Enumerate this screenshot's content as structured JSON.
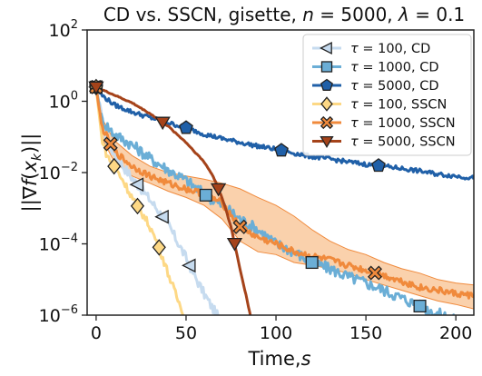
{
  "chart_data": {
    "type": "line",
    "title": "CD vs. SSCN, gisette, n = 5000, λ = 0.1",
    "xlabel": "Time, s",
    "ylabel": "||∇f(x_k)||",
    "xlim": [
      -5,
      210
    ],
    "ylim_log10": [
      -6,
      2
    ],
    "y_scale": "log",
    "x_ticks": [
      0,
      50,
      100,
      150,
      200
    ],
    "y_ticks": [
      {
        "exp": "2",
        "value": 100
      },
      {
        "exp": "0",
        "value": 1
      },
      {
        "exp": "−2",
        "value": 0.01
      },
      {
        "exp": "−4",
        "value": 0.0001
      },
      {
        "exp": "−6",
        "value": 1e-06
      }
    ],
    "legend_position": "top-right",
    "series": [
      {
        "name": "τ = 100, CD",
        "tau": "100",
        "method": "CD",
        "color": "#c6dbef",
        "marker": "triangle-left",
        "x": [
          0,
          5,
          10,
          15,
          20,
          25,
          30,
          35,
          40,
          45,
          50,
          55,
          60,
          65,
          70
        ],
        "y": [
          2.5,
          0.1,
          0.035,
          0.015,
          0.007,
          0.0035,
          0.0017,
          0.0008,
          0.00035,
          0.00012,
          4e-05,
          1.2e-05,
          4e-06,
          1.5e-06,
          6e-07
        ],
        "markers_x": [
          0,
          23,
          37,
          52
        ]
      },
      {
        "name": "τ = 1000, CD",
        "tau": "1000",
        "method": "CD",
        "color": "#6baed6",
        "marker": "square",
        "x": [
          0,
          3,
          10,
          20,
          30,
          40,
          50,
          60,
          70,
          80,
          90,
          100,
          110,
          120,
          130,
          140,
          150,
          160,
          170,
          180,
          190,
          200
        ],
        "y": [
          2.5,
          0.3,
          0.12,
          0.06,
          0.025,
          0.012,
          0.006,
          0.0025,
          0.0012,
          0.0005,
          0.00025,
          0.0001,
          6e-05,
          3e-05,
          2e-05,
          1.2e-05,
          8e-06,
          5e-06,
          3e-06,
          1.8e-06,
          1.1e-06,
          7e-07
        ],
        "markers_x": [
          0,
          61,
          120,
          180
        ]
      },
      {
        "name": "τ = 5000, CD",
        "tau": "5000",
        "method": "CD",
        "color": "#2060a8",
        "marker": "pentagon",
        "x": [
          0,
          3,
          10,
          20,
          30,
          40,
          50,
          60,
          70,
          80,
          90,
          100,
          110,
          120,
          130,
          140,
          150,
          160,
          170,
          180,
          190,
          200,
          210
        ],
        "y": [
          2.5,
          1.5,
          0.8,
          0.5,
          0.35,
          0.25,
          0.18,
          0.12,
          0.09,
          0.07,
          0.055,
          0.045,
          0.035,
          0.028,
          0.024,
          0.02,
          0.017,
          0.015,
          0.013,
          0.011,
          0.009,
          0.008,
          0.007
        ],
        "markers_x": [
          0,
          50,
          103,
          157
        ]
      },
      {
        "name": "τ = 100, SSCN",
        "tau": "100",
        "method": "SSCN",
        "color": "#fdd885",
        "marker": "diamond",
        "x": [
          0,
          3,
          6,
          10,
          15,
          20,
          25,
          30,
          35,
          40,
          45,
          50
        ],
        "y": [
          2.5,
          0.1,
          0.03,
          0.015,
          0.006,
          0.002,
          0.0008,
          0.0003,
          8e-05,
          1.5e-05,
          3e-06,
          8e-07
        ],
        "markers_x": [
          0,
          10,
          23,
          35
        ]
      },
      {
        "name": "τ = 1000, SSCN",
        "tau": "1000",
        "method": "SSCN",
        "color": "#f08a3c",
        "band": "#f5a35a",
        "marker": "x-filled",
        "x": [
          0,
          3,
          10,
          20,
          30,
          40,
          50,
          60,
          70,
          80,
          90,
          100,
          110,
          120,
          130,
          140,
          150,
          160,
          170,
          180,
          190,
          200,
          210
        ],
        "y": [
          2.5,
          0.2,
          0.04,
          0.015,
          0.008,
          0.005,
          0.0035,
          0.0025,
          0.0014,
          0.0003,
          0.00015,
          0.0001,
          6e-05,
          4.5e-05,
          3.5e-05,
          2.5e-05,
          1.8e-05,
          1.3e-05,
          9e-06,
          6e-06,
          5e-06,
          4e-06,
          3.5e-06
        ],
        "lower": [
          2.5,
          0.1,
          0.02,
          0.008,
          0.005,
          0.003,
          0.002,
          0.0012,
          0.0005,
          0.00012,
          6e-05,
          5e-05,
          3e-05,
          2.5e-05,
          2e-05,
          1.5e-05,
          1e-05,
          7e-06,
          5e-06,
          3.5e-06,
          2.5e-06,
          2e-06,
          1.5e-06
        ],
        "upper": [
          2.5,
          0.35,
          0.08,
          0.03,
          0.015,
          0.01,
          0.008,
          0.0065,
          0.005,
          0.0035,
          0.002,
          0.0012,
          0.0006,
          0.00025,
          0.00012,
          7e-05,
          5e-05,
          3e-05,
          2e-05,
          1.5e-05,
          1e-05,
          8e-06,
          7e-06
        ],
        "markers_x": [
          0,
          8,
          80,
          155
        ]
      },
      {
        "name": "τ = 5000, SSCN",
        "tau": "5000",
        "method": "SSCN",
        "color": "#a5431a",
        "marker": "triangle-down",
        "x": [
          0,
          10,
          20,
          30,
          40,
          50,
          60,
          65,
          70,
          75,
          80,
          85,
          90
        ],
        "y": [
          2.5,
          1.5,
          0.9,
          0.45,
          0.2,
          0.07,
          0.02,
          0.008,
          0.002,
          0.0003,
          2e-05,
          1.5e-06,
          1e-07
        ],
        "markers_x": [
          0,
          37,
          68,
          77
        ]
      }
    ]
  }
}
